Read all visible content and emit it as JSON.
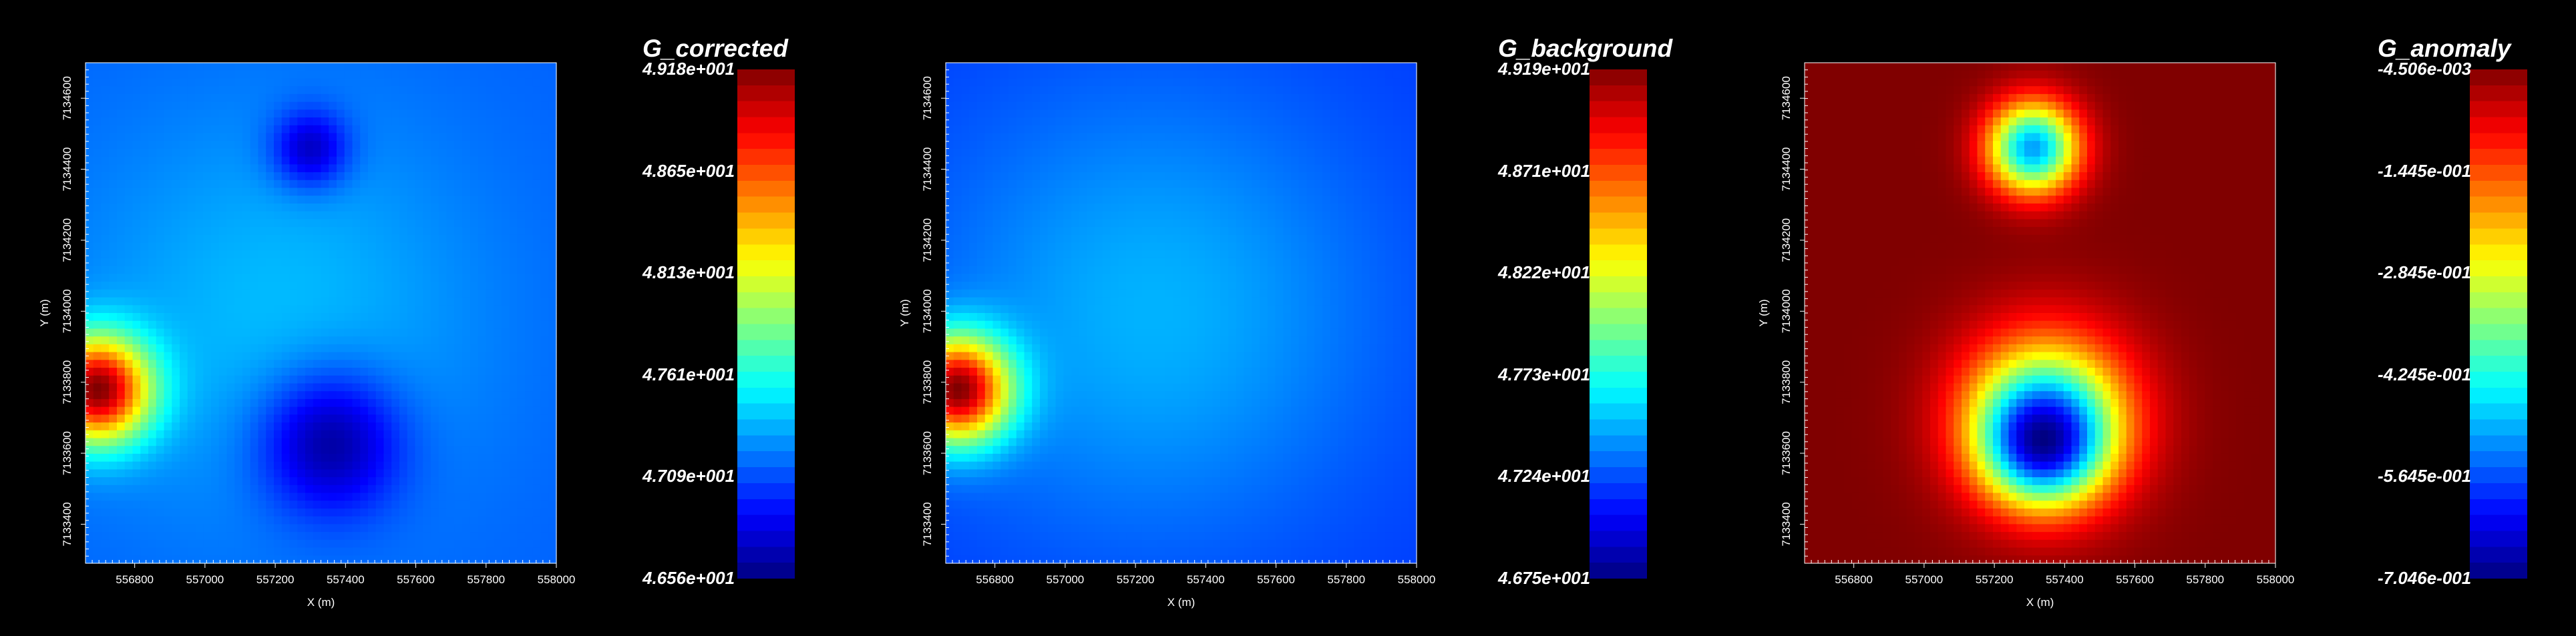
{
  "chart_data": [
    {
      "type": "heatmap",
      "title": "G_corrected",
      "xlabel": "X (m)",
      "ylabel": "Y (m)",
      "x_ticks": [
        "556800",
        "557000",
        "557200",
        "557400",
        "557600",
        "557800",
        "558000"
      ],
      "y_ticks": [
        "7134600",
        "7134400",
        "7134200",
        "7134000",
        "7133800",
        "7133600",
        "7133400"
      ],
      "xlim": [
        556660,
        558000
      ],
      "ylim": [
        7133290,
        7134700
      ],
      "colorbar": {
        "min": "4.656e+001",
        "max": "4.918e+001",
        "labels": [
          "4.918e+001",
          "4.865e+001",
          "4.813e+001",
          "4.761e+001",
          "4.709e+001",
          "4.656e+001"
        ]
      },
      "background_level": 0.22,
      "features": [
        {
          "x": 557205,
          "y": 7133985,
          "level": 0.31,
          "sigma": 420
        },
        {
          "x": 556695,
          "y": 7133780,
          "level": 1.0,
          "sigma": 105
        },
        {
          "x": 557300,
          "y": 7134460,
          "level": 0.07,
          "sigma": 75
        },
        {
          "x": 557360,
          "y": 7133620,
          "level": 0.04,
          "sigma": 140
        }
      ]
    },
    {
      "type": "heatmap",
      "title": "G_background",
      "xlabel": "X (m)",
      "ylabel": "Y (m)",
      "x_ticks": [
        "556800",
        "557000",
        "557200",
        "557400",
        "557600",
        "557800",
        "558000"
      ],
      "y_ticks": [
        "7134600",
        "7134400",
        "7134200",
        "7134000",
        "7133800",
        "7133600",
        "7133400"
      ],
      "xlim": [
        556660,
        558000
      ],
      "ylim": [
        7133290,
        7134700
      ],
      "colorbar": {
        "min": "4.675e+001",
        "max": "4.919e+001",
        "labels": [
          "4.919e+001",
          "4.871e+001",
          "4.822e+001",
          "4.773e+001",
          "4.724e+001",
          "4.675e+001"
        ]
      },
      "background_level": 0.18,
      "features": [
        {
          "x": 557250,
          "y": 7134000,
          "level": 0.3,
          "sigma": 450
        },
        {
          "x": 556695,
          "y": 7133780,
          "level": 1.0,
          "sigma": 105
        }
      ]
    },
    {
      "type": "heatmap",
      "title": "G_anomaly",
      "xlabel": "X (m)",
      "ylabel": "Y (m)",
      "x_ticks": [
        "556800",
        "557000",
        "557200",
        "557400",
        "557600",
        "557800",
        "558000"
      ],
      "y_ticks": [
        "7134600",
        "7134400",
        "7134200",
        "7134000",
        "7133800",
        "7133600",
        "7133400"
      ],
      "xlim": [
        556660,
        558000
      ],
      "ylim": [
        7133290,
        7134700
      ],
      "colorbar": {
        "min": "-7.046e-001",
        "max": "-4.506e-003",
        "labels": [
          "-4.506e-003",
          "-1.445e-001",
          "-2.845e-001",
          "-4.245e-001",
          "-5.645e-001",
          "-7.046e-001"
        ]
      },
      "background_level": 1.0,
      "features": [
        {
          "x": 557310,
          "y": 7134460,
          "level": 0.28,
          "sigma": 90
        },
        {
          "x": 557350,
          "y": 7133700,
          "level": 0.48,
          "sigma": 170
        },
        {
          "x": 557340,
          "y": 7133640,
          "level": 0.0,
          "sigma": 110
        }
      ]
    }
  ]
}
